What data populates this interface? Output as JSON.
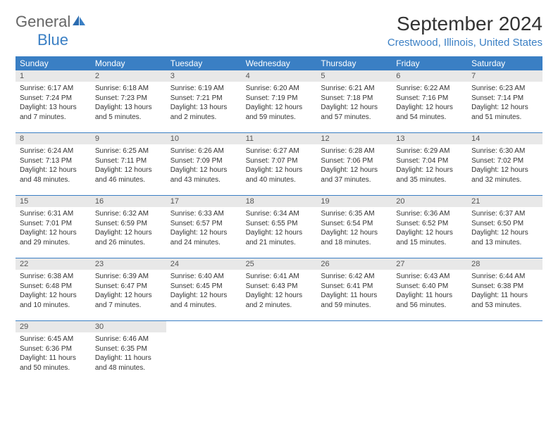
{
  "logo": {
    "text_gray": "General",
    "text_blue": "Blue",
    "icon_color": "#2b6cb0"
  },
  "header": {
    "month_year": "September 2024",
    "location": "Crestwood, Illinois, United States"
  },
  "colors": {
    "header_bg": "#3a7fc4",
    "header_text": "#ffffff",
    "day_number_bg": "#e8e8e8",
    "border": "#3a7fc4",
    "text": "#333333",
    "logo_gray": "#666666",
    "logo_blue": "#3a7fc4"
  },
  "day_names": [
    "Sunday",
    "Monday",
    "Tuesday",
    "Wednesday",
    "Thursday",
    "Friday",
    "Saturday"
  ],
  "weeks": [
    [
      {
        "num": "1",
        "sunrise": "Sunrise: 6:17 AM",
        "sunset": "Sunset: 7:24 PM",
        "daylight": "Daylight: 13 hours and 7 minutes."
      },
      {
        "num": "2",
        "sunrise": "Sunrise: 6:18 AM",
        "sunset": "Sunset: 7:23 PM",
        "daylight": "Daylight: 13 hours and 5 minutes."
      },
      {
        "num": "3",
        "sunrise": "Sunrise: 6:19 AM",
        "sunset": "Sunset: 7:21 PM",
        "daylight": "Daylight: 13 hours and 2 minutes."
      },
      {
        "num": "4",
        "sunrise": "Sunrise: 6:20 AM",
        "sunset": "Sunset: 7:19 PM",
        "daylight": "Daylight: 12 hours and 59 minutes."
      },
      {
        "num": "5",
        "sunrise": "Sunrise: 6:21 AM",
        "sunset": "Sunset: 7:18 PM",
        "daylight": "Daylight: 12 hours and 57 minutes."
      },
      {
        "num": "6",
        "sunrise": "Sunrise: 6:22 AM",
        "sunset": "Sunset: 7:16 PM",
        "daylight": "Daylight: 12 hours and 54 minutes."
      },
      {
        "num": "7",
        "sunrise": "Sunrise: 6:23 AM",
        "sunset": "Sunset: 7:14 PM",
        "daylight": "Daylight: 12 hours and 51 minutes."
      }
    ],
    [
      {
        "num": "8",
        "sunrise": "Sunrise: 6:24 AM",
        "sunset": "Sunset: 7:13 PM",
        "daylight": "Daylight: 12 hours and 48 minutes."
      },
      {
        "num": "9",
        "sunrise": "Sunrise: 6:25 AM",
        "sunset": "Sunset: 7:11 PM",
        "daylight": "Daylight: 12 hours and 46 minutes."
      },
      {
        "num": "10",
        "sunrise": "Sunrise: 6:26 AM",
        "sunset": "Sunset: 7:09 PM",
        "daylight": "Daylight: 12 hours and 43 minutes."
      },
      {
        "num": "11",
        "sunrise": "Sunrise: 6:27 AM",
        "sunset": "Sunset: 7:07 PM",
        "daylight": "Daylight: 12 hours and 40 minutes."
      },
      {
        "num": "12",
        "sunrise": "Sunrise: 6:28 AM",
        "sunset": "Sunset: 7:06 PM",
        "daylight": "Daylight: 12 hours and 37 minutes."
      },
      {
        "num": "13",
        "sunrise": "Sunrise: 6:29 AM",
        "sunset": "Sunset: 7:04 PM",
        "daylight": "Daylight: 12 hours and 35 minutes."
      },
      {
        "num": "14",
        "sunrise": "Sunrise: 6:30 AM",
        "sunset": "Sunset: 7:02 PM",
        "daylight": "Daylight: 12 hours and 32 minutes."
      }
    ],
    [
      {
        "num": "15",
        "sunrise": "Sunrise: 6:31 AM",
        "sunset": "Sunset: 7:01 PM",
        "daylight": "Daylight: 12 hours and 29 minutes."
      },
      {
        "num": "16",
        "sunrise": "Sunrise: 6:32 AM",
        "sunset": "Sunset: 6:59 PM",
        "daylight": "Daylight: 12 hours and 26 minutes."
      },
      {
        "num": "17",
        "sunrise": "Sunrise: 6:33 AM",
        "sunset": "Sunset: 6:57 PM",
        "daylight": "Daylight: 12 hours and 24 minutes."
      },
      {
        "num": "18",
        "sunrise": "Sunrise: 6:34 AM",
        "sunset": "Sunset: 6:55 PM",
        "daylight": "Daylight: 12 hours and 21 minutes."
      },
      {
        "num": "19",
        "sunrise": "Sunrise: 6:35 AM",
        "sunset": "Sunset: 6:54 PM",
        "daylight": "Daylight: 12 hours and 18 minutes."
      },
      {
        "num": "20",
        "sunrise": "Sunrise: 6:36 AM",
        "sunset": "Sunset: 6:52 PM",
        "daylight": "Daylight: 12 hours and 15 minutes."
      },
      {
        "num": "21",
        "sunrise": "Sunrise: 6:37 AM",
        "sunset": "Sunset: 6:50 PM",
        "daylight": "Daylight: 12 hours and 13 minutes."
      }
    ],
    [
      {
        "num": "22",
        "sunrise": "Sunrise: 6:38 AM",
        "sunset": "Sunset: 6:48 PM",
        "daylight": "Daylight: 12 hours and 10 minutes."
      },
      {
        "num": "23",
        "sunrise": "Sunrise: 6:39 AM",
        "sunset": "Sunset: 6:47 PM",
        "daylight": "Daylight: 12 hours and 7 minutes."
      },
      {
        "num": "24",
        "sunrise": "Sunrise: 6:40 AM",
        "sunset": "Sunset: 6:45 PM",
        "daylight": "Daylight: 12 hours and 4 minutes."
      },
      {
        "num": "25",
        "sunrise": "Sunrise: 6:41 AM",
        "sunset": "Sunset: 6:43 PM",
        "daylight": "Daylight: 12 hours and 2 minutes."
      },
      {
        "num": "26",
        "sunrise": "Sunrise: 6:42 AM",
        "sunset": "Sunset: 6:41 PM",
        "daylight": "Daylight: 11 hours and 59 minutes."
      },
      {
        "num": "27",
        "sunrise": "Sunrise: 6:43 AM",
        "sunset": "Sunset: 6:40 PM",
        "daylight": "Daylight: 11 hours and 56 minutes."
      },
      {
        "num": "28",
        "sunrise": "Sunrise: 6:44 AM",
        "sunset": "Sunset: 6:38 PM",
        "daylight": "Daylight: 11 hours and 53 minutes."
      }
    ],
    [
      {
        "num": "29",
        "sunrise": "Sunrise: 6:45 AM",
        "sunset": "Sunset: 6:36 PM",
        "daylight": "Daylight: 11 hours and 50 minutes."
      },
      {
        "num": "30",
        "sunrise": "Sunrise: 6:46 AM",
        "sunset": "Sunset: 6:35 PM",
        "daylight": "Daylight: 11 hours and 48 minutes."
      },
      null,
      null,
      null,
      null,
      null
    ]
  ]
}
